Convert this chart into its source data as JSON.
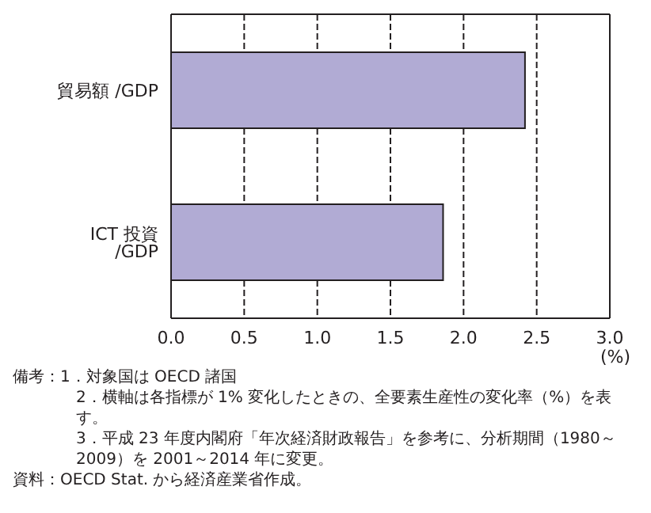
{
  "chart_data": {
    "type": "bar",
    "orientation": "horizontal",
    "categories": [
      "貿易額 /GDP",
      "ICT 投資 /GDP"
    ],
    "values": [
      2.42,
      1.86
    ],
    "color": "#b1abd4",
    "xlim": [
      0,
      3
    ],
    "xticks": [
      {
        "value": 0,
        "label": "0.0"
      },
      {
        "value": 0.5,
        "label": "0.5"
      },
      {
        "value": 1,
        "label": "1.0"
      },
      {
        "value": 1.5,
        "label": "1.5"
      },
      {
        "value": 2,
        "label": "2.0"
      },
      {
        "value": 2.5,
        "label": "2.5"
      },
      {
        "value": 3,
        "label": "3.0"
      }
    ],
    "xlabel": "(%)",
    "grid": "x",
    "annotations": [
      "備考：1．対象国は OECD 諸国",
      "2．横軸は各指標が 1% 変化したときの、全要素生産性の変化率（%）を表す。",
      "3．平成 23 年度内閣府「年次経済財政報告」を参考に、分析期間（1980～2009）を 2001～2014 年に変更。",
      "資料：OECD Stat. から経済産業省作成。"
    ]
  }
}
